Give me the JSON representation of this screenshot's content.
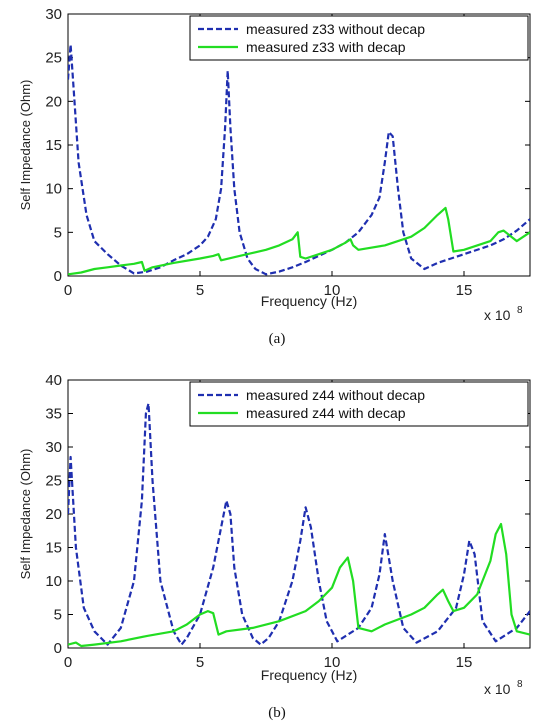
{
  "chart_data": [
    {
      "type": "line",
      "caption": "(a)",
      "xlabel": "Frequency (Hz)",
      "ylabel": "Self Impedance (Ohm)",
      "x_multiplier": "x 10",
      "x_multiplier_exp": "8",
      "xlim": [
        0,
        17.5
      ],
      "ylim": [
        0,
        30
      ],
      "xticks": [
        0,
        5,
        10,
        15
      ],
      "xtick_labels": [
        "0",
        "5",
        "10",
        "15"
      ],
      "yticks": [
        0,
        5,
        10,
        15,
        20,
        25,
        30
      ],
      "ytick_labels": [
        "0",
        "5",
        "10",
        "15",
        "20",
        "25",
        "30"
      ],
      "grid": false,
      "legend_position": "top-right",
      "series": [
        {
          "name": "measured z33 without decap",
          "color": "#1f2fb0",
          "style": "dashed",
          "x": [
            0,
            0.1,
            0.2,
            0.4,
            0.7,
            1.0,
            1.5,
            2.0,
            2.5,
            3.0,
            3.5,
            4.0,
            4.5,
            5.0,
            5.3,
            5.6,
            5.8,
            5.95,
            6.05,
            6.15,
            6.3,
            6.5,
            6.8,
            7.1,
            7.5,
            8.0,
            8.5,
            9.0,
            10.0,
            10.5,
            11.0,
            11.5,
            11.8,
            12.0,
            12.15,
            12.3,
            12.5,
            12.7,
            13.0,
            13.5,
            14.0,
            15.0,
            16.0,
            16.5,
            17.0,
            17.5
          ],
          "y": [
            22.5,
            26.5,
            22,
            13,
            7,
            4,
            2.5,
            1.2,
            0.3,
            0.5,
            1,
            1.8,
            2.5,
            3.5,
            4.5,
            6.5,
            10,
            17,
            23.5,
            17,
            10,
            5,
            2,
            0.8,
            0.2,
            0.5,
            1,
            1.6,
            3,
            3.8,
            5,
            7,
            9,
            13,
            16.5,
            16,
            10,
            5,
            2,
            0.8,
            1.5,
            2.5,
            3.5,
            4.2,
            5.2,
            6.5
          ]
        },
        {
          "name": "measured z33 with decap",
          "color": "#22dd22",
          "style": "solid",
          "x": [
            0,
            0.5,
            1.0,
            1.5,
            2.0,
            2.5,
            2.8,
            2.9,
            3.2,
            4.0,
            5.0,
            5.5,
            5.7,
            5.8,
            6.5,
            7.5,
            8.0,
            8.5,
            8.7,
            8.8,
            9.0,
            9.5,
            10.0,
            10.5,
            10.7,
            10.8,
            11.0,
            12.0,
            13.0,
            13.5,
            14.0,
            14.3,
            14.4,
            14.6,
            15.0,
            16.0,
            16.3,
            16.5,
            17.0,
            17.5
          ],
          "y": [
            0.2,
            0.4,
            0.8,
            1.0,
            1.2,
            1.4,
            1.6,
            0.6,
            1.0,
            1.5,
            2.0,
            2.3,
            2.5,
            1.8,
            2.3,
            3.0,
            3.5,
            4.2,
            5.0,
            2.2,
            2.0,
            2.5,
            3.0,
            3.8,
            4.2,
            3.5,
            3.0,
            3.5,
            4.5,
            5.5,
            7.0,
            7.8,
            6.5,
            2.8,
            3.0,
            4.0,
            5.0,
            5.2,
            4.0,
            5.0
          ]
        }
      ]
    },
    {
      "type": "line",
      "caption": "(b)",
      "xlabel": "Frequency (Hz)",
      "ylabel": "Self Impedance (Ohm)",
      "x_multiplier": "x 10",
      "x_multiplier_exp": "8",
      "xlim": [
        0,
        17.5
      ],
      "ylim": [
        0,
        40
      ],
      "xticks": [
        0,
        5,
        10,
        15
      ],
      "xtick_labels": [
        "0",
        "5",
        "10",
        "15"
      ],
      "yticks": [
        0,
        5,
        10,
        15,
        20,
        25,
        30,
        35,
        40
      ],
      "ytick_labels": [
        "0",
        "5",
        "10",
        "15",
        "20",
        "25",
        "30",
        "35",
        "40"
      ],
      "grid": false,
      "legend_position": "top-right",
      "series": [
        {
          "name": "measured z44 without decap",
          "color": "#1f2fb0",
          "style": "dashed",
          "x": [
            0,
            0.1,
            0.3,
            0.6,
            1.0,
            1.5,
            2.0,
            2.5,
            2.8,
            2.95,
            3.05,
            3.2,
            3.5,
            4.0,
            4.3,
            4.5,
            5.0,
            5.5,
            5.8,
            6.0,
            6.15,
            6.3,
            6.6,
            7.0,
            7.3,
            7.6,
            8.0,
            8.5,
            8.8,
            9.0,
            9.2,
            9.5,
            9.8,
            10.2,
            11.0,
            11.5,
            11.8,
            12.0,
            12.3,
            12.7,
            13.2,
            14.0,
            14.7,
            15.0,
            15.2,
            15.4,
            15.7,
            16.2,
            17.0,
            17.5
          ],
          "y": [
            20,
            28.5,
            15,
            6,
            2.5,
            0.5,
            3,
            10,
            22,
            35,
            36.5,
            25,
            10,
            2.5,
            0.5,
            1.5,
            5,
            12,
            18,
            22,
            20,
            12,
            5,
            1.5,
            0.5,
            1.5,
            4,
            10,
            16,
            21,
            18,
            10,
            4,
            1,
            3,
            6,
            11,
            17,
            10,
            3,
            0.8,
            2.5,
            6,
            11,
            16,
            14,
            4,
            1,
            3,
            5.5
          ]
        },
        {
          "name": "measured z44 with decap",
          "color": "#22dd22",
          "style": "solid",
          "x": [
            0,
            0.3,
            0.5,
            1.0,
            2.0,
            3.0,
            4.0,
            4.5,
            5.0,
            5.3,
            5.5,
            5.7,
            6.0,
            7.0,
            8.0,
            9.0,
            9.5,
            10.0,
            10.3,
            10.6,
            10.8,
            11.0,
            11.5,
            12.0,
            13.0,
            13.5,
            14.0,
            14.2,
            14.4,
            14.6,
            15.0,
            15.5,
            16.0,
            16.2,
            16.4,
            16.6,
            16.8,
            17.0,
            17.5
          ],
          "y": [
            0.5,
            0.8,
            0.3,
            0.5,
            1.0,
            1.8,
            2.5,
            3.5,
            5.0,
            5.5,
            5.2,
            2.0,
            2.5,
            3.0,
            4.0,
            5.5,
            7.0,
            9.0,
            12.0,
            13.5,
            10.0,
            3.0,
            2.5,
            3.5,
            5.0,
            6.0,
            8.0,
            8.7,
            7.0,
            5.5,
            6.0,
            8.0,
            13.0,
            17.0,
            18.5,
            14.0,
            5.0,
            2.5,
            2.0
          ]
        }
      ]
    }
  ]
}
